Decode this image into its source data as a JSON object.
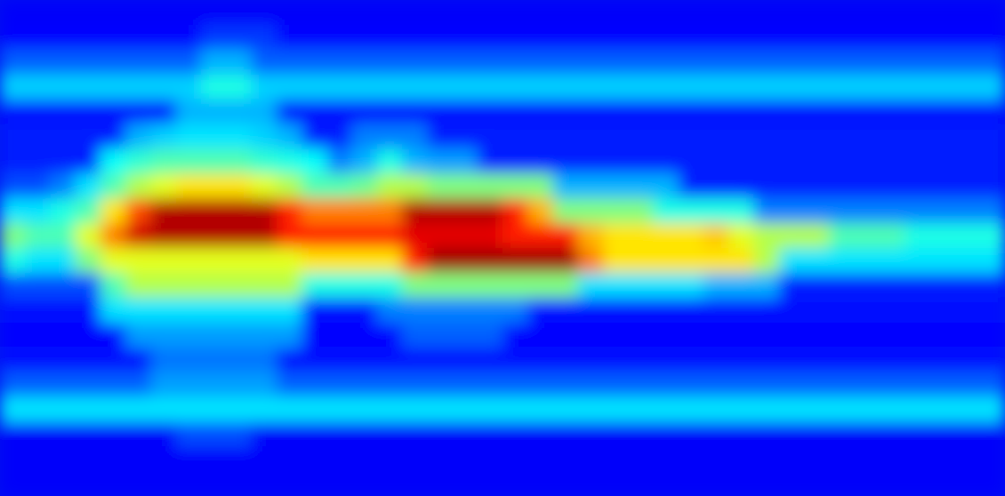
{
  "chart_data": {
    "type": "heatmap",
    "tick_labels": false,
    "zlim": [
      0,
      1
    ],
    "cells": [
      [
        0.12,
        0.12,
        0.12,
        0.12,
        0.12,
        0.12,
        0.12,
        0.12,
        0.12,
        0.12,
        0.12,
        0.12,
        0.12,
        0.12,
        0.12,
        0.12,
        0.12,
        0.12,
        0.12,
        0.12,
        0.12,
        0.12,
        0.12,
        0.12,
        0.12,
        0.12,
        0.12,
        0.12,
        0.12,
        0.12,
        0.12,
        0.12,
        0.12,
        0.12,
        0.12,
        0.12,
        0.12,
        0.12,
        0.12,
        0.12
      ],
      [
        0.13,
        0.13,
        0.13,
        0.13,
        0.13,
        0.13,
        0.13,
        0.13,
        0.18,
        0.18,
        0.18,
        0.13,
        0.13,
        0.13,
        0.13,
        0.13,
        0.13,
        0.13,
        0.13,
        0.13,
        0.13,
        0.13,
        0.13,
        0.13,
        0.13,
        0.13,
        0.13,
        0.13,
        0.13,
        0.13,
        0.13,
        0.13,
        0.13,
        0.13,
        0.13,
        0.13,
        0.13,
        0.13,
        0.13,
        0.13
      ],
      [
        0.22,
        0.22,
        0.22,
        0.22,
        0.22,
        0.22,
        0.22,
        0.22,
        0.3,
        0.3,
        0.22,
        0.22,
        0.22,
        0.22,
        0.22,
        0.22,
        0.22,
        0.22,
        0.22,
        0.22,
        0.22,
        0.22,
        0.22,
        0.22,
        0.22,
        0.22,
        0.22,
        0.22,
        0.22,
        0.22,
        0.22,
        0.22,
        0.22,
        0.22,
        0.22,
        0.22,
        0.22,
        0.22,
        0.22,
        0.22
      ],
      [
        0.33,
        0.33,
        0.33,
        0.33,
        0.33,
        0.33,
        0.33,
        0.33,
        0.4,
        0.4,
        0.33,
        0.33,
        0.33,
        0.33,
        0.33,
        0.33,
        0.33,
        0.33,
        0.33,
        0.33,
        0.33,
        0.33,
        0.33,
        0.33,
        0.33,
        0.33,
        0.33,
        0.33,
        0.33,
        0.33,
        0.33,
        0.33,
        0.33,
        0.33,
        0.33,
        0.33,
        0.33,
        0.33,
        0.33,
        0.33
      ],
      [
        0.14,
        0.14,
        0.14,
        0.14,
        0.14,
        0.14,
        0.14,
        0.3,
        0.3,
        0.3,
        0.3,
        0.14,
        0.14,
        0.14,
        0.14,
        0.14,
        0.14,
        0.14,
        0.14,
        0.14,
        0.14,
        0.14,
        0.14,
        0.14,
        0.14,
        0.14,
        0.14,
        0.14,
        0.14,
        0.14,
        0.14,
        0.14,
        0.14,
        0.14,
        0.14,
        0.14,
        0.14,
        0.14,
        0.14,
        0.14
      ],
      [
        0.15,
        0.15,
        0.15,
        0.15,
        0.15,
        0.3,
        0.33,
        0.35,
        0.35,
        0.35,
        0.33,
        0.3,
        0.15,
        0.15,
        0.25,
        0.25,
        0.25,
        0.15,
        0.15,
        0.15,
        0.15,
        0.15,
        0.15,
        0.15,
        0.15,
        0.15,
        0.15,
        0.15,
        0.15,
        0.15,
        0.15,
        0.15,
        0.15,
        0.15,
        0.15,
        0.15,
        0.15,
        0.15,
        0.15,
        0.15
      ],
      [
        0.15,
        0.15,
        0.15,
        0.15,
        0.38,
        0.42,
        0.45,
        0.45,
        0.45,
        0.45,
        0.42,
        0.4,
        0.38,
        0.25,
        0.3,
        0.4,
        0.3,
        0.28,
        0.28,
        0.15,
        0.15,
        0.15,
        0.15,
        0.15,
        0.15,
        0.15,
        0.15,
        0.15,
        0.15,
        0.15,
        0.15,
        0.15,
        0.15,
        0.15,
        0.15,
        0.15,
        0.15,
        0.15,
        0.15,
        0.15
      ],
      [
        0.2,
        0.2,
        0.25,
        0.35,
        0.45,
        0.55,
        0.6,
        0.65,
        0.65,
        0.65,
        0.6,
        0.55,
        0.45,
        0.45,
        0.48,
        0.55,
        0.55,
        0.5,
        0.5,
        0.5,
        0.5,
        0.5,
        0.3,
        0.3,
        0.3,
        0.3,
        0.3,
        0.15,
        0.15,
        0.15,
        0.15,
        0.15,
        0.15,
        0.15,
        0.15,
        0.15,
        0.15,
        0.15,
        0.15,
        0.15
      ],
      [
        0.35,
        0.35,
        0.4,
        0.45,
        0.65,
        0.8,
        0.95,
        0.95,
        0.95,
        0.95,
        0.95,
        0.85,
        0.75,
        0.75,
        0.75,
        0.75,
        0.95,
        0.95,
        0.95,
        0.95,
        0.85,
        0.7,
        0.5,
        0.5,
        0.5,
        0.5,
        0.4,
        0.4,
        0.4,
        0.4,
        0.25,
        0.25,
        0.25,
        0.25,
        0.25,
        0.25,
        0.25,
        0.25,
        0.25,
        0.25
      ],
      [
        0.5,
        0.45,
        0.45,
        0.6,
        0.75,
        0.92,
        0.95,
        0.95,
        0.95,
        0.95,
        0.95,
        0.85,
        0.85,
        0.85,
        0.85,
        0.85,
        0.9,
        0.9,
        0.9,
        0.9,
        0.85,
        0.85,
        0.85,
        0.7,
        0.65,
        0.65,
        0.65,
        0.65,
        0.68,
        0.6,
        0.55,
        0.55,
        0.55,
        0.45,
        0.45,
        0.45,
        0.4,
        0.4,
        0.4,
        0.4
      ],
      [
        0.4,
        0.35,
        0.35,
        0.5,
        0.6,
        0.6,
        0.6,
        0.6,
        0.6,
        0.6,
        0.6,
        0.6,
        0.65,
        0.65,
        0.65,
        0.65,
        0.85,
        0.97,
        0.97,
        0.97,
        0.97,
        0.97,
        0.97,
        0.75,
        0.65,
        0.65,
        0.65,
        0.65,
        0.65,
        0.65,
        0.55,
        0.35,
        0.35,
        0.35,
        0.35,
        0.35,
        0.35,
        0.35,
        0.35,
        0.35
      ],
      [
        0.2,
        0.2,
        0.2,
        0.2,
        0.45,
        0.55,
        0.55,
        0.55,
        0.55,
        0.55,
        0.55,
        0.55,
        0.4,
        0.4,
        0.4,
        0.4,
        0.5,
        0.5,
        0.5,
        0.5,
        0.5,
        0.5,
        0.5,
        0.35,
        0.35,
        0.35,
        0.35,
        0.35,
        0.3,
        0.3,
        0.3,
        0.15,
        0.15,
        0.15,
        0.15,
        0.15,
        0.15,
        0.15,
        0.15,
        0.15
      ],
      [
        0.14,
        0.14,
        0.14,
        0.14,
        0.35,
        0.35,
        0.35,
        0.35,
        0.35,
        0.35,
        0.35,
        0.35,
        0.14,
        0.14,
        0.14,
        0.25,
        0.25,
        0.25,
        0.25,
        0.25,
        0.25,
        0.14,
        0.14,
        0.14,
        0.14,
        0.14,
        0.14,
        0.14,
        0.14,
        0.14,
        0.14,
        0.14,
        0.14,
        0.14,
        0.14,
        0.14,
        0.14,
        0.14,
        0.14,
        0.14
      ],
      [
        0.13,
        0.13,
        0.13,
        0.13,
        0.13,
        0.28,
        0.28,
        0.28,
        0.28,
        0.28,
        0.28,
        0.28,
        0.13,
        0.13,
        0.13,
        0.13,
        0.22,
        0.22,
        0.22,
        0.22,
        0.13,
        0.13,
        0.13,
        0.13,
        0.13,
        0.13,
        0.13,
        0.13,
        0.13,
        0.13,
        0.13,
        0.13,
        0.13,
        0.13,
        0.13,
        0.13,
        0.13,
        0.13,
        0.13,
        0.13
      ],
      [
        0.14,
        0.14,
        0.14,
        0.14,
        0.14,
        0.14,
        0.24,
        0.24,
        0.24,
        0.24,
        0.24,
        0.14,
        0.14,
        0.14,
        0.14,
        0.14,
        0.14,
        0.14,
        0.14,
        0.14,
        0.14,
        0.14,
        0.14,
        0.14,
        0.14,
        0.14,
        0.14,
        0.14,
        0.14,
        0.14,
        0.14,
        0.14,
        0.14,
        0.14,
        0.14,
        0.14,
        0.14,
        0.14,
        0.14,
        0.14
      ],
      [
        0.22,
        0.22,
        0.22,
        0.22,
        0.22,
        0.22,
        0.28,
        0.28,
        0.28,
        0.28,
        0.28,
        0.22,
        0.22,
        0.22,
        0.22,
        0.22,
        0.22,
        0.22,
        0.22,
        0.22,
        0.22,
        0.22,
        0.22,
        0.22,
        0.22,
        0.22,
        0.22,
        0.22,
        0.22,
        0.22,
        0.22,
        0.22,
        0.22,
        0.22,
        0.22,
        0.22,
        0.22,
        0.22,
        0.22,
        0.22
      ],
      [
        0.35,
        0.35,
        0.35,
        0.35,
        0.35,
        0.35,
        0.35,
        0.35,
        0.35,
        0.35,
        0.35,
        0.35,
        0.35,
        0.35,
        0.35,
        0.35,
        0.35,
        0.35,
        0.35,
        0.35,
        0.35,
        0.35,
        0.35,
        0.35,
        0.35,
        0.35,
        0.35,
        0.35,
        0.35,
        0.35,
        0.35,
        0.35,
        0.35,
        0.35,
        0.35,
        0.35,
        0.35,
        0.35,
        0.35,
        0.35
      ],
      [
        0.12,
        0.12,
        0.12,
        0.12,
        0.12,
        0.12,
        0.12,
        0.2,
        0.2,
        0.2,
        0.12,
        0.12,
        0.12,
        0.12,
        0.12,
        0.12,
        0.12,
        0.12,
        0.12,
        0.12,
        0.12,
        0.12,
        0.12,
        0.12,
        0.12,
        0.12,
        0.12,
        0.12,
        0.12,
        0.12,
        0.12,
        0.12,
        0.12,
        0.12,
        0.12,
        0.12,
        0.12,
        0.12,
        0.12,
        0.12
      ],
      [
        0.12,
        0.12,
        0.12,
        0.12,
        0.12,
        0.12,
        0.12,
        0.12,
        0.12,
        0.12,
        0.12,
        0.12,
        0.12,
        0.12,
        0.12,
        0.12,
        0.12,
        0.12,
        0.12,
        0.12,
        0.12,
        0.12,
        0.12,
        0.12,
        0.12,
        0.12,
        0.12,
        0.12,
        0.12,
        0.12,
        0.12,
        0.12,
        0.12,
        0.12,
        0.12,
        0.12,
        0.12,
        0.12,
        0.12,
        0.12
      ],
      [
        0.12,
        0.12,
        0.12,
        0.12,
        0.12,
        0.12,
        0.12,
        0.12,
        0.12,
        0.12,
        0.12,
        0.12,
        0.12,
        0.12,
        0.12,
        0.12,
        0.12,
        0.12,
        0.12,
        0.12,
        0.12,
        0.12,
        0.12,
        0.12,
        0.12,
        0.12,
        0.12,
        0.12,
        0.12,
        0.12,
        0.12,
        0.12,
        0.12,
        0.12,
        0.12,
        0.12,
        0.12,
        0.12,
        0.12,
        0.12
      ]
    ]
  }
}
